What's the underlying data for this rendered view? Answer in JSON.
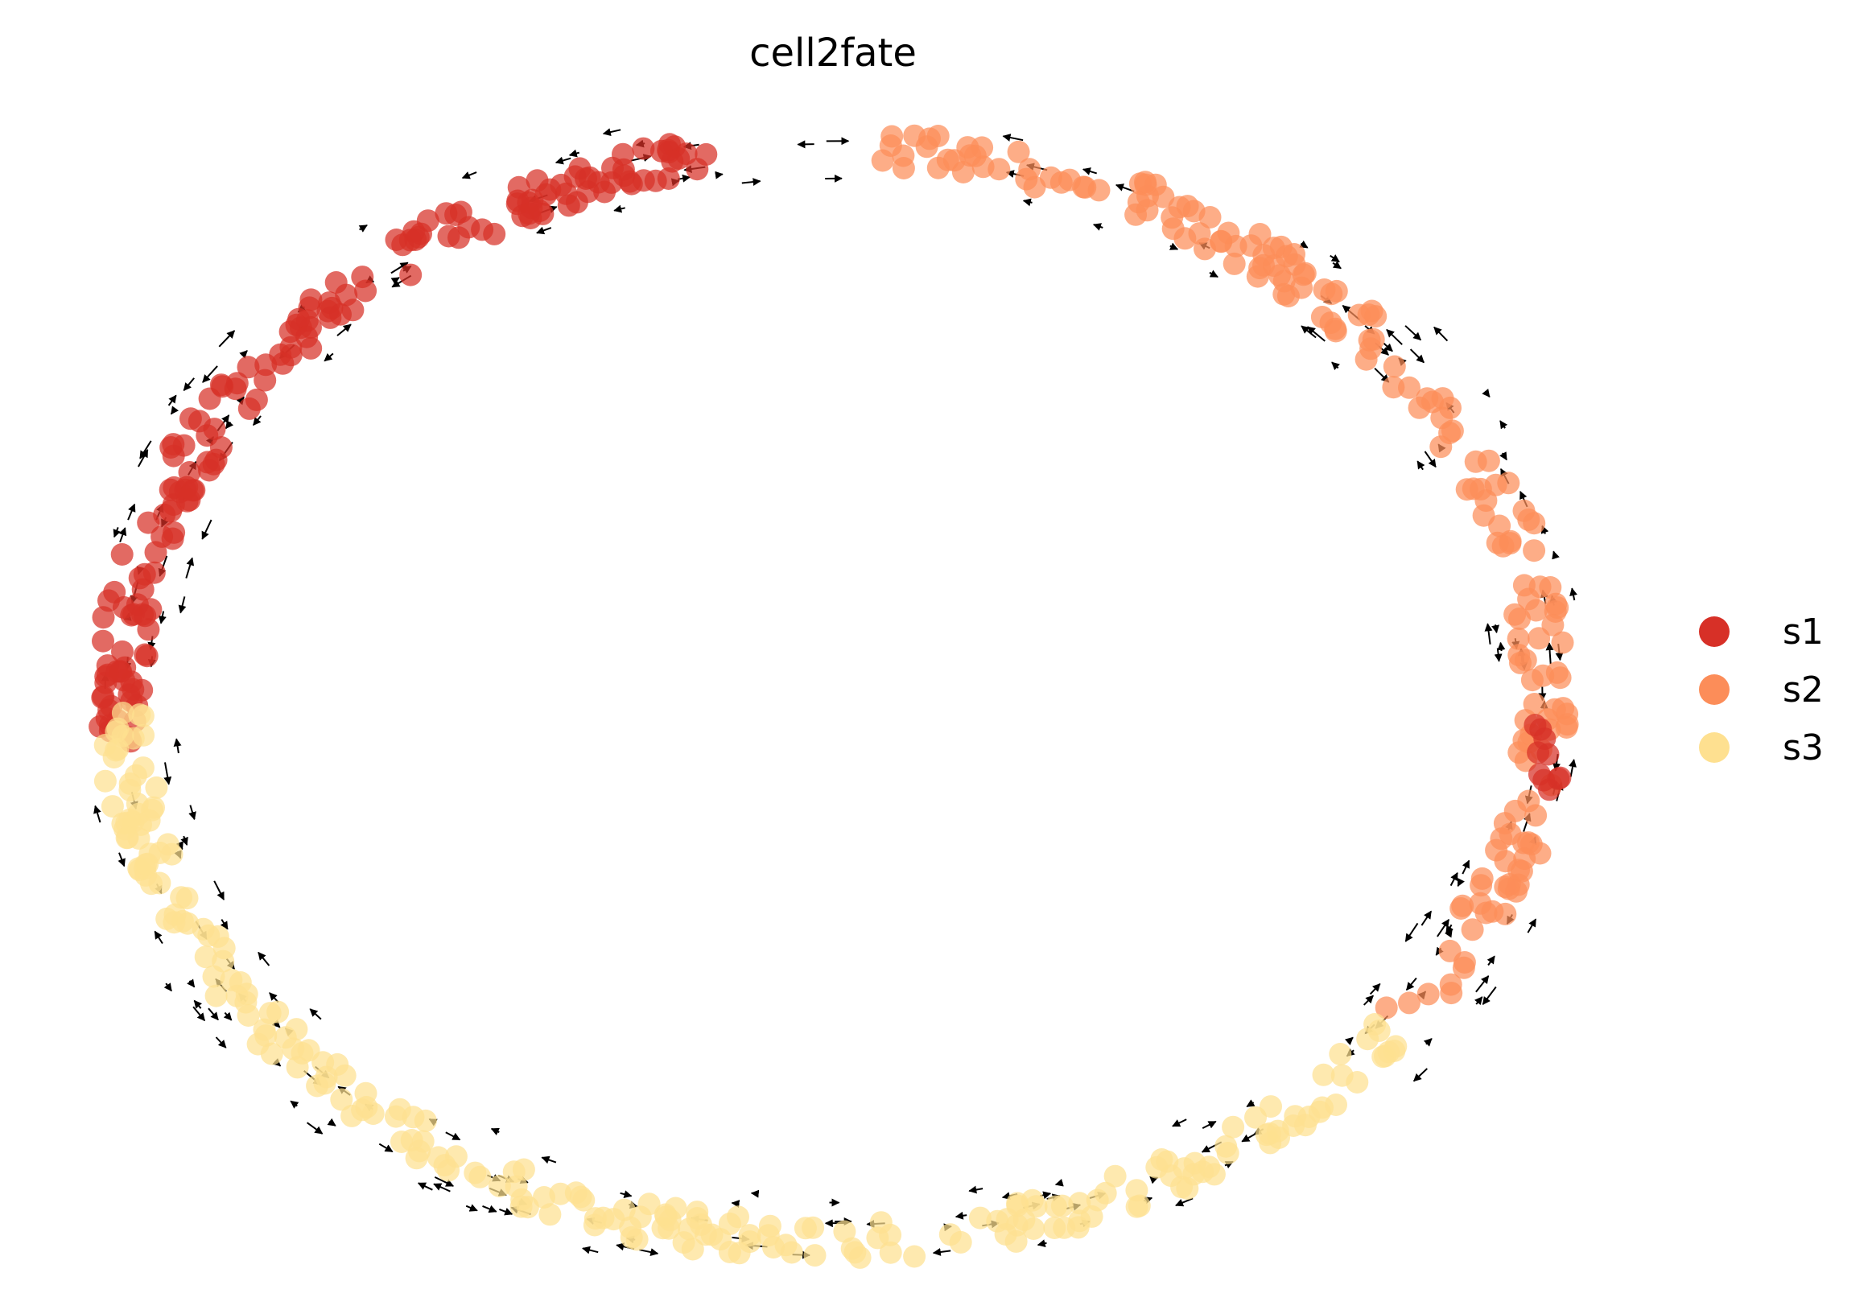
{
  "chart_data": {
    "type": "scatter",
    "title": "cell2fate",
    "xlabel": "",
    "ylabel": "",
    "grid": false,
    "axes_visible": false,
    "legend_position": "right",
    "overlay": "velocity arrows",
    "series": [
      {
        "name": "s1",
        "color": "#d73027",
        "arc_deg": [
          100,
          186
        ],
        "counts": 175
      },
      {
        "name": "s2",
        "color": "#fc8d59",
        "arc_deg": [
          -37,
          86
        ],
        "counts": 190
      },
      {
        "name": "s3",
        "color": "#fee090",
        "arc_deg": [
          182,
          323
        ],
        "counts": 235
      }
    ],
    "s1_extra_arc_deg": [
      -10,
      -3
    ],
    "ring": {
      "cx": 0.0,
      "cy": 0.0,
      "rx": 1.0,
      "ry": 1.0
    }
  }
}
